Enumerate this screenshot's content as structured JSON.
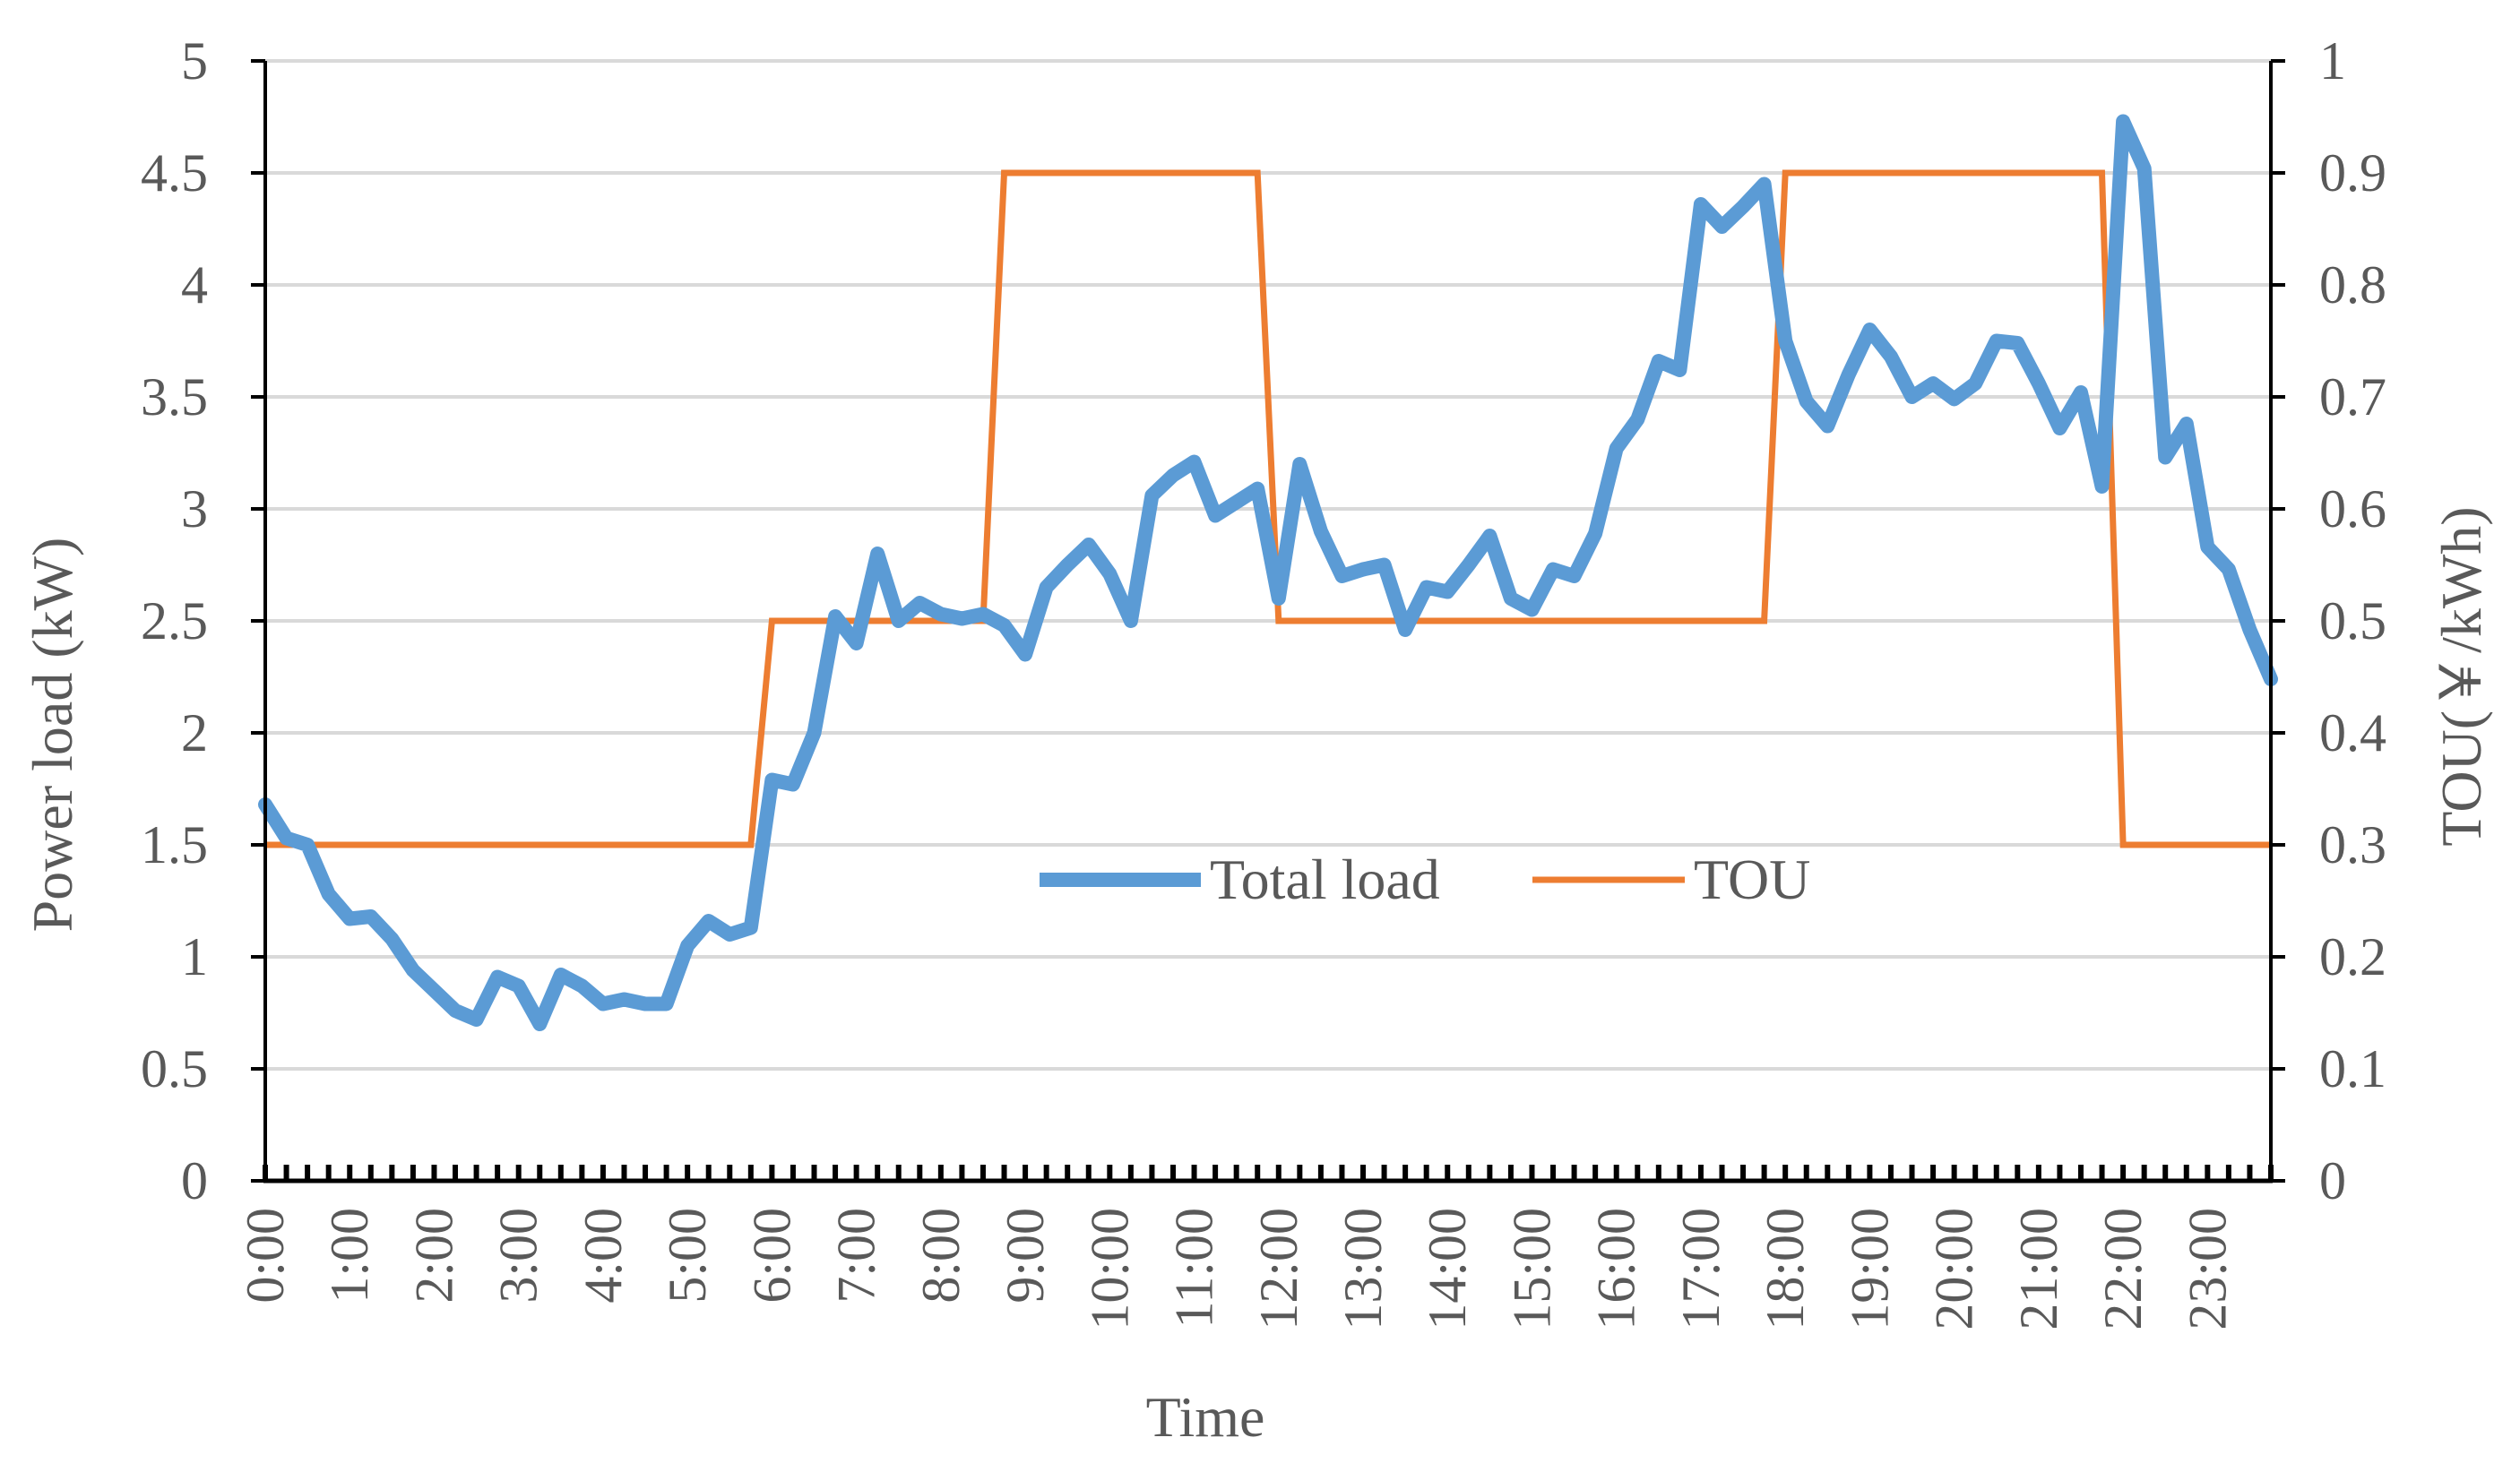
{
  "chart_data": {
    "type": "line",
    "xlabel": "Time",
    "ylabel_left": "Power load (kW)",
    "ylabel_right": "TOU(￥/kWh)",
    "ylim_left": [
      0,
      5
    ],
    "ylim_right": [
      0,
      1
    ],
    "yticks_left": [
      "0",
      "0.5",
      "1",
      "1.5",
      "2",
      "2.5",
      "3",
      "3.5",
      "4",
      "4.5",
      "5"
    ],
    "yticks_right": [
      "0",
      "0.1",
      "0.2",
      "0.3",
      "0.4",
      "0.5",
      "0.6",
      "0.7",
      "0.8",
      "0.9",
      "1"
    ],
    "x_tick_labels": [
      "0:00",
      "1:00",
      "2:00",
      "3:00",
      "4:00",
      "5:00",
      "6:00",
      "7:00",
      "8:00",
      "9:00",
      "10:00",
      "11:00",
      "12:00",
      "13:00",
      "14:00",
      "15:00",
      "16:00",
      "17:00",
      "18:00",
      "19:00",
      "20:00",
      "21:00",
      "22:00",
      "23:00"
    ],
    "x_interval_minutes": 15,
    "grid": "horizontal",
    "legend_position": "center",
    "series": [
      {
        "name": "Total load",
        "axis": "left",
        "color": "#5B9BD5",
        "values": [
          1.68,
          1.53,
          1.5,
          1.28,
          1.17,
          1.18,
          1.08,
          0.94,
          0.85,
          0.76,
          0.72,
          0.91,
          0.87,
          0.7,
          0.92,
          0.87,
          0.79,
          0.81,
          0.79,
          0.79,
          1.05,
          1.16,
          1.1,
          1.13,
          1.79,
          1.77,
          2.0,
          2.52,
          2.4,
          2.8,
          2.5,
          2.58,
          2.53,
          2.51,
          2.53,
          2.48,
          2.35,
          2.65,
          2.75,
          2.84,
          2.71,
          2.5,
          3.06,
          3.15,
          3.21,
          2.97,
          3.03,
          3.09,
          2.6,
          3.2,
          2.9,
          2.7,
          2.73,
          2.75,
          2.46,
          2.65,
          2.63,
          2.75,
          2.88,
          2.6,
          2.55,
          2.73,
          2.7,
          2.89,
          3.27,
          3.4,
          3.66,
          3.62,
          4.36,
          4.26,
          4.35,
          4.45,
          3.75,
          3.48,
          3.37,
          3.6,
          3.8,
          3.68,
          3.5,
          3.56,
          3.49,
          3.56,
          3.75,
          3.74,
          3.56,
          3.36,
          3.52,
          3.1,
          4.73,
          4.52,
          3.23,
          3.38,
          2.83,
          2.73,
          2.46,
          2.24
        ]
      },
      {
        "name": "TOU",
        "axis": "right",
        "color": "#ED7D31",
        "segments": [
          {
            "start": "0:00",
            "end": "5:45",
            "price": 0.3
          },
          {
            "start": "6:00",
            "end": "8:30",
            "price": 0.5
          },
          {
            "start": "8:45",
            "end": "11:45",
            "price": 0.9
          },
          {
            "start": "12:00",
            "end": "17:45",
            "price": 0.5
          },
          {
            "start": "18:00",
            "end": "21:45",
            "price": 0.9
          },
          {
            "start": "22:00",
            "end": "23:45",
            "price": 0.3
          }
        ]
      }
    ]
  }
}
